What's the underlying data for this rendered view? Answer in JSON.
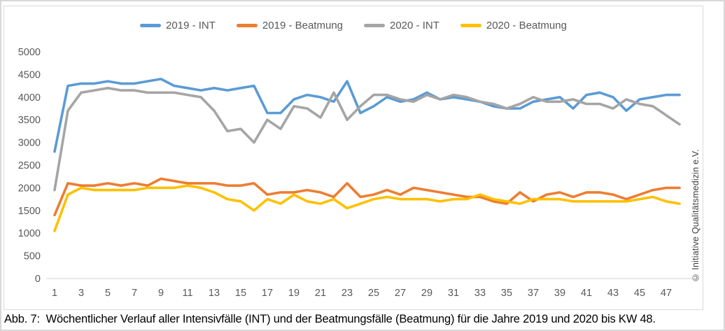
{
  "figure": {
    "caption": "Abb. 7:  Wöchentlicher Verlauf aller Intensivfälle (INT) und der Beatmungsfälle (Beatmung) für die Jahre 2019 und 2020 bis KW 48.",
    "copyright_vertical": "© Initiative Qualitätsmedizin e.V."
  },
  "chart_data": {
    "type": "line",
    "title": "",
    "xlabel": "",
    "ylabel": "",
    "x": [
      1,
      2,
      3,
      4,
      5,
      6,
      7,
      8,
      9,
      10,
      11,
      12,
      13,
      14,
      15,
      16,
      17,
      18,
      19,
      20,
      21,
      22,
      23,
      24,
      25,
      26,
      27,
      28,
      29,
      30,
      31,
      32,
      33,
      34,
      35,
      36,
      37,
      38,
      39,
      40,
      41,
      42,
      43,
      44,
      45,
      46,
      47,
      48
    ],
    "x_tick_labels": [
      "1",
      "3",
      "5",
      "7",
      "9",
      "11",
      "13",
      "15",
      "17",
      "19",
      "21",
      "23",
      "25",
      "27",
      "29",
      "31",
      "33",
      "35",
      "37",
      "39",
      "41",
      "43",
      "45",
      "47"
    ],
    "ylim": [
      0,
      5000
    ],
    "ytick_interval": 500,
    "grid": false,
    "legend_position": "top",
    "axis_color": "#d9d9d9",
    "tick_text_color": "#595959",
    "series": [
      {
        "name": "2019 - INT",
        "color": "#5B9BD5",
        "values": [
          2800,
          4250,
          4300,
          4300,
          4350,
          4300,
          4300,
          4350,
          4400,
          4250,
          4200,
          4150,
          4200,
          4150,
          4200,
          4250,
          3650,
          3650,
          3950,
          4050,
          4000,
          3900,
          4350,
          3650,
          3800,
          4000,
          3900,
          3950,
          4100,
          3950,
          4000,
          3950,
          3900,
          3800,
          3750,
          3750,
          3900,
          3950,
          4000,
          3750,
          4050,
          4100,
          4000,
          3700,
          3950,
          4000,
          4050,
          4050
        ]
      },
      {
        "name": "2019 - Beatmung",
        "color": "#ED7D31",
        "values": [
          1400,
          2100,
          2050,
          2050,
          2100,
          2050,
          2100,
          2050,
          2200,
          2150,
          2100,
          2100,
          2100,
          2050,
          2050,
          2100,
          1850,
          1900,
          1900,
          1950,
          1900,
          1800,
          2100,
          1800,
          1850,
          1950,
          1850,
          2000,
          1950,
          1900,
          1850,
          1800,
          1800,
          1700,
          1650,
          1900,
          1700,
          1850,
          1900,
          1800,
          1900,
          1900,
          1850,
          1750,
          1850,
          1950,
          2000,
          2000
        ]
      },
      {
        "name": "2020 - INT",
        "color": "#A5A5A5",
        "values": [
          1950,
          3700,
          4100,
          4150,
          4200,
          4150,
          4150,
          4100,
          4100,
          4100,
          4050,
          4000,
          3700,
          3250,
          3300,
          3000,
          3500,
          3300,
          3800,
          3750,
          3550,
          4100,
          3500,
          3800,
          4050,
          4050,
          3950,
          3900,
          4050,
          3950,
          4050,
          4000,
          3900,
          3850,
          3750,
          3850,
          4000,
          3900,
          3900,
          3950,
          3850,
          3850,
          3750,
          3950,
          3850,
          3800,
          3600,
          3400
        ]
      },
      {
        "name": "2020 - Beatmung",
        "color": "#FFC000",
        "values": [
          1050,
          1850,
          2000,
          1950,
          1950,
          1950,
          1950,
          2000,
          2000,
          2000,
          2050,
          2000,
          1900,
          1750,
          1700,
          1500,
          1750,
          1650,
          1850,
          1700,
          1650,
          1750,
          1550,
          1650,
          1750,
          1800,
          1750,
          1750,
          1750,
          1700,
          1750,
          1750,
          1850,
          1750,
          1700,
          1650,
          1750,
          1750,
          1750,
          1700,
          1700,
          1700,
          1700,
          1700,
          1750,
          1800,
          1700,
          1650
        ]
      }
    ]
  }
}
